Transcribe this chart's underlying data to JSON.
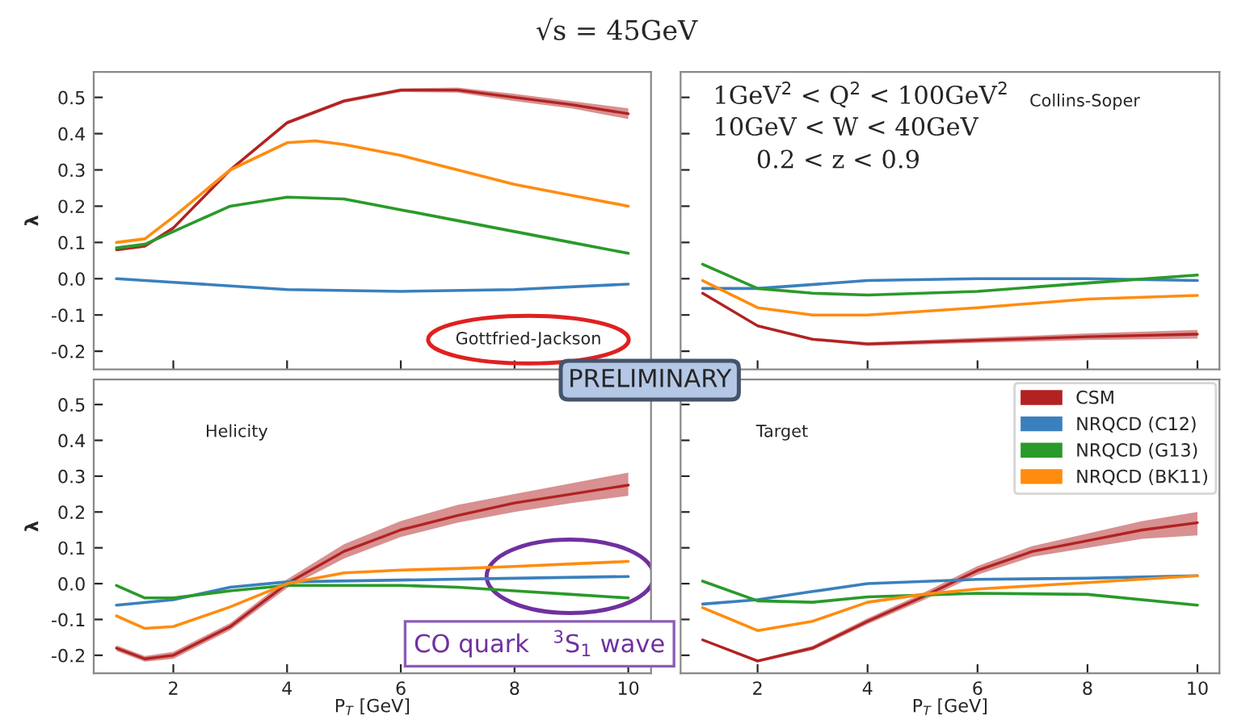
{
  "chart_data": [
    {
      "type": "line",
      "title": "√s = 45GeV",
      "ylabel": "λ",
      "xlim": [
        0.6,
        10.4
      ],
      "ylim": [
        -0.25,
        0.57
      ],
      "xticks": [
        2,
        4,
        6,
        8,
        10
      ],
      "yticks": [
        -0.2,
        -0.1,
        {
          "value": 0,
          "label": "0.0"
        },
        0.1,
        0.2,
        0.3,
        0.4,
        0.5
      ],
      "tick_labels": "y",
      "annotations": [
        "Gottfried-Jackson",
        "PRELIMINARY"
      ],
      "series": [
        {
          "color": "#b22222",
          "x": [
            1,
            1.5,
            2,
            3,
            4,
            5,
            6,
            7,
            8,
            9,
            10
          ],
          "values": [
            0.08,
            0.09,
            0.14,
            0.3,
            0.43,
            0.49,
            0.52,
            0.52,
            0.5,
            0.48,
            0.455
          ],
          "lower": [
            0.075,
            0.085,
            0.135,
            0.295,
            0.425,
            0.485,
            0.515,
            0.513,
            0.49,
            0.47,
            0.44
          ],
          "upper": [
            0.085,
            0.095,
            0.145,
            0.305,
            0.435,
            0.495,
            0.525,
            0.527,
            0.51,
            0.49,
            0.47
          ]
        },
        {
          "color": "#3a80bd",
          "x": [
            1,
            2,
            4,
            6,
            8,
            10
          ],
          "values": [
            0.0,
            -0.01,
            -0.03,
            -0.035,
            -0.03,
            -0.015
          ]
        },
        {
          "color": "#2a9a2a",
          "x": [
            1,
            1.5,
            2,
            3,
            4,
            5,
            6,
            7,
            8,
            9,
            10
          ],
          "values": [
            0.085,
            0.095,
            0.13,
            0.2,
            0.225,
            0.22,
            0.19,
            0.16,
            0.13,
            0.1,
            0.07
          ]
        },
        {
          "color": "#ff8c0f",
          "x": [
            1,
            1.5,
            2,
            3,
            4,
            4.5,
            5,
            6,
            7,
            8,
            9,
            10
          ],
          "values": [
            0.1,
            0.11,
            0.17,
            0.3,
            0.375,
            0.38,
            0.37,
            0.34,
            0.3,
            0.26,
            0.23,
            0.2
          ]
        }
      ]
    },
    {
      "type": "line",
      "xlim": [
        0.6,
        10.4
      ],
      "ylim": [
        -0.25,
        0.57
      ],
      "xticks": [
        2,
        4,
        6,
        8,
        10
      ],
      "yticks": [
        -0.2,
        -0.1,
        0,
        0.1,
        0.2,
        0.3,
        0.4,
        0.5
      ],
      "tick_labels": false,
      "annotations": [
        "1GeV$^{2}$ < Q$^{2}$ < 100GeV$^{2}$",
        "10GeV < W < 40GeV",
        "0.2 < z < 0.9",
        "Collins-Soper"
      ],
      "series": [
        {
          "color": "#b22222",
          "x": [
            1,
            2,
            3,
            4,
            6,
            8,
            10
          ],
          "values": [
            -0.04,
            -0.13,
            -0.167,
            -0.18,
            -0.17,
            -0.16,
            -0.153
          ],
          "lower": [
            -0.043,
            -0.134,
            -0.171,
            -0.185,
            -0.177,
            -0.169,
            -0.165
          ],
          "upper": [
            -0.037,
            -0.126,
            -0.163,
            -0.175,
            -0.163,
            -0.151,
            -0.141
          ]
        },
        {
          "color": "#3a80bd",
          "x": [
            1,
            2,
            4,
            6,
            8,
            10
          ],
          "values": [
            -0.027,
            -0.027,
            -0.005,
            0.0,
            0.0,
            -0.005
          ]
        },
        {
          "color": "#2a9a2a",
          "x": [
            1,
            2,
            3,
            4,
            6,
            8,
            10
          ],
          "values": [
            0.04,
            -0.027,
            -0.04,
            -0.045,
            -0.035,
            -0.012,
            0.01
          ]
        },
        {
          "color": "#ff8c0f",
          "x": [
            1,
            2,
            3,
            4,
            6,
            8,
            10
          ],
          "values": [
            -0.005,
            -0.08,
            -0.1,
            -0.1,
            -0.08,
            -0.056,
            -0.046
          ]
        }
      ]
    },
    {
      "type": "line",
      "xlabel": "P$_{T}$ [GeV]",
      "ylabel": "λ",
      "xlim": [
        0.6,
        10.4
      ],
      "ylim": [
        -0.25,
        0.57
      ],
      "xticks": [
        2,
        4,
        6,
        8,
        10
      ],
      "yticks": [
        -0.2,
        -0.1,
        {
          "value": 0,
          "label": "0.0"
        },
        0.1,
        0.2,
        0.3,
        0.4,
        0.5
      ],
      "annotations": [
        "Helicity",
        "CO quark   $^{3}$S$_{1}$ wave"
      ],
      "series": [
        {
          "color": "#b22222",
          "x": [
            1,
            1.5,
            2,
            3,
            4,
            5,
            6,
            7,
            8,
            9,
            10
          ],
          "values": [
            -0.18,
            -0.21,
            -0.2,
            -0.12,
            0.0,
            0.09,
            0.15,
            0.19,
            0.225,
            0.25,
            0.275
          ],
          "lower": [
            -0.188,
            -0.218,
            -0.21,
            -0.13,
            -0.012,
            0.07,
            0.13,
            0.17,
            0.2,
            0.225,
            0.245
          ],
          "upper": [
            -0.172,
            -0.202,
            -0.19,
            -0.11,
            0.012,
            0.11,
            0.175,
            0.22,
            0.25,
            0.28,
            0.31
          ]
        },
        {
          "color": "#3a80bd",
          "x": [
            1,
            2,
            3,
            4,
            6,
            8,
            10
          ],
          "values": [
            -0.06,
            -0.045,
            -0.01,
            0.005,
            0.01,
            0.015,
            0.02
          ]
        },
        {
          "color": "#2a9a2a",
          "x": [
            1,
            1.5,
            2,
            3,
            4,
            6,
            7,
            8,
            9,
            10
          ],
          "values": [
            -0.005,
            -0.04,
            -0.04,
            -0.02,
            -0.005,
            -0.005,
            -0.01,
            -0.02,
            -0.03,
            -0.04
          ]
        },
        {
          "color": "#ff8c0f",
          "x": [
            1,
            1.5,
            2,
            3,
            4,
            5,
            6,
            7,
            8,
            9,
            10
          ],
          "values": [
            -0.09,
            -0.125,
            -0.12,
            -0.065,
            0.0,
            0.03,
            0.038,
            0.042,
            0.048,
            0.055,
            0.062
          ]
        }
      ]
    },
    {
      "type": "line",
      "xlabel": "P$_{T}$ [GeV]",
      "xlim": [
        0.6,
        10.4
      ],
      "ylim": [
        -0.25,
        0.57
      ],
      "xticks": [
        2,
        4,
        6,
        8,
        10
      ],
      "yticks": [
        -0.2,
        -0.1,
        0,
        0.1,
        0.2,
        0.3,
        0.4,
        0.5
      ],
      "tick_labels": "x",
      "legend": "top right",
      "annotations": [
        "Target"
      ],
      "series": [
        {
          "name": "CSM",
          "color": "#b22222",
          "x": [
            1,
            2,
            3,
            4,
            5,
            6,
            7,
            8,
            9,
            10
          ],
          "values": [
            -0.157,
            -0.216,
            -0.18,
            -0.105,
            -0.037,
            0.037,
            0.09,
            0.12,
            0.15,
            0.17
          ],
          "lower": [
            -0.16,
            -0.22,
            -0.186,
            -0.113,
            -0.047,
            0.025,
            0.075,
            0.1,
            0.125,
            0.135
          ],
          "upper": [
            -0.154,
            -0.212,
            -0.174,
            -0.097,
            -0.027,
            0.049,
            0.105,
            0.14,
            0.175,
            0.2
          ]
        },
        {
          "name": "NRQCD (C12)",
          "color": "#3a80bd",
          "x": [
            1,
            2,
            3,
            4,
            6,
            8,
            10
          ],
          "values": [
            -0.057,
            -0.045,
            -0.022,
            0.0,
            0.012,
            0.015,
            0.022
          ]
        },
        {
          "name": "NRQCD (G13)",
          "color": "#2a9a2a",
          "x": [
            1,
            2,
            3,
            4,
            6,
            8,
            10
          ],
          "values": [
            0.007,
            -0.048,
            -0.052,
            -0.037,
            -0.027,
            -0.03,
            -0.06
          ]
        },
        {
          "name": "NRQCD (BK11)",
          "color": "#ff8c0f",
          "x": [
            1,
            2,
            3,
            4,
            5,
            6,
            8,
            10
          ],
          "values": [
            -0.067,
            -0.131,
            -0.105,
            -0.052,
            -0.03,
            -0.015,
            0.003,
            0.022
          ]
        }
      ]
    }
  ]
}
